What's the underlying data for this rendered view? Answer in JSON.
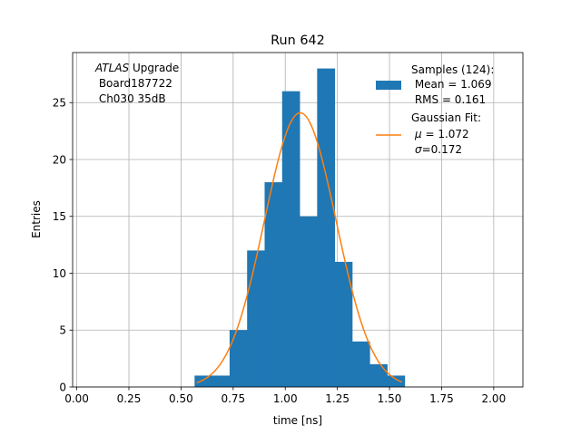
{
  "chart_data": {
    "type": "bar",
    "title": "Run 642",
    "xlabel": "time [ns]",
    "ylabel": "Entries",
    "xlim": [
      -0.02,
      2.14
    ],
    "ylim": [
      0,
      29.4
    ],
    "xticks": [
      "0.00",
      "0.25",
      "0.50",
      "0.75",
      "1.00",
      "1.25",
      "1.50",
      "1.75",
      "2.00"
    ],
    "yticks": [
      "0",
      "5",
      "10",
      "15",
      "20",
      "25"
    ],
    "grid": true,
    "bin_edges": [
      0.565,
      0.649,
      0.733,
      0.817,
      0.901,
      0.985,
      1.069,
      1.153,
      1.237,
      1.321,
      1.405,
      1.489,
      1.573
    ],
    "counts": [
      1,
      1,
      5,
      12,
      18,
      26,
      15,
      28,
      11,
      4,
      2,
      1
    ],
    "bar_color": "#1f77b4",
    "fit": {
      "mu": 1.072,
      "sigma": 0.172,
      "amplitude": 24.1,
      "x_range": [
        0.575,
        1.56
      ],
      "color": "#ff7f0e"
    },
    "annotation": {
      "line1_italic": "ATLAS",
      "line1_rest": " Upgrade",
      "line2": " Board187722",
      "line3": " Ch030 35dB"
    },
    "legend": {
      "position": "top-right",
      "samples": {
        "line1": "Samples (124):",
        "line2": " Mean = 1.069",
        "line3": " RMS = 0.161"
      },
      "fit": {
        "line1": "Gaussian Fit:",
        "mu_symbol": "μ",
        "mu_rest": " = 1.072",
        "sigma_symbol": "σ",
        "sigma_rest": "=0.172"
      }
    }
  }
}
